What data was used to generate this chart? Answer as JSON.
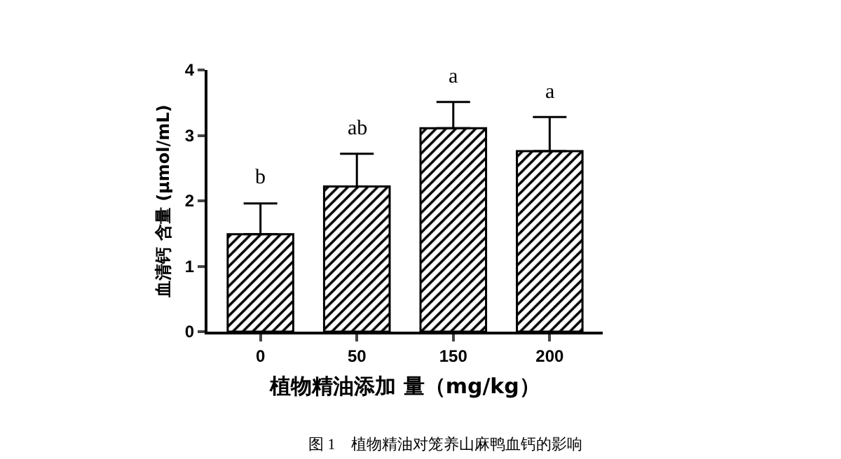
{
  "chart_data": {
    "type": "bar",
    "categories": [
      "0",
      "50",
      "150",
      "200"
    ],
    "values": [
      1.49,
      2.22,
      3.11,
      2.76
    ],
    "errors": [
      [
        1.49,
        1.96
      ],
      [
        2.22,
        2.72
      ],
      [
        3.11,
        3.51
      ],
      [
        2.76,
        3.28
      ]
    ],
    "color": "#000000",
    "xlabel": "植物精油添加 量（mg/kg）",
    "ylabel": "血清钙 含量 (μmol/mL)",
    "ylim": [
      0,
      4
    ],
    "yticks": [
      0,
      1,
      2,
      3,
      4
    ],
    "grid": false,
    "annotations": [
      {
        "text": "b",
        "x": "0",
        "y": 1.96
      },
      {
        "text": "ab",
        "x": "50",
        "y": 2.72
      },
      {
        "text": "a",
        "x": "150",
        "y": 3.51
      },
      {
        "text": "a",
        "x": "200",
        "y": 3.28
      },
      "图 1　植物精油对笼养山麻鸭血钙的影响"
    ]
  }
}
